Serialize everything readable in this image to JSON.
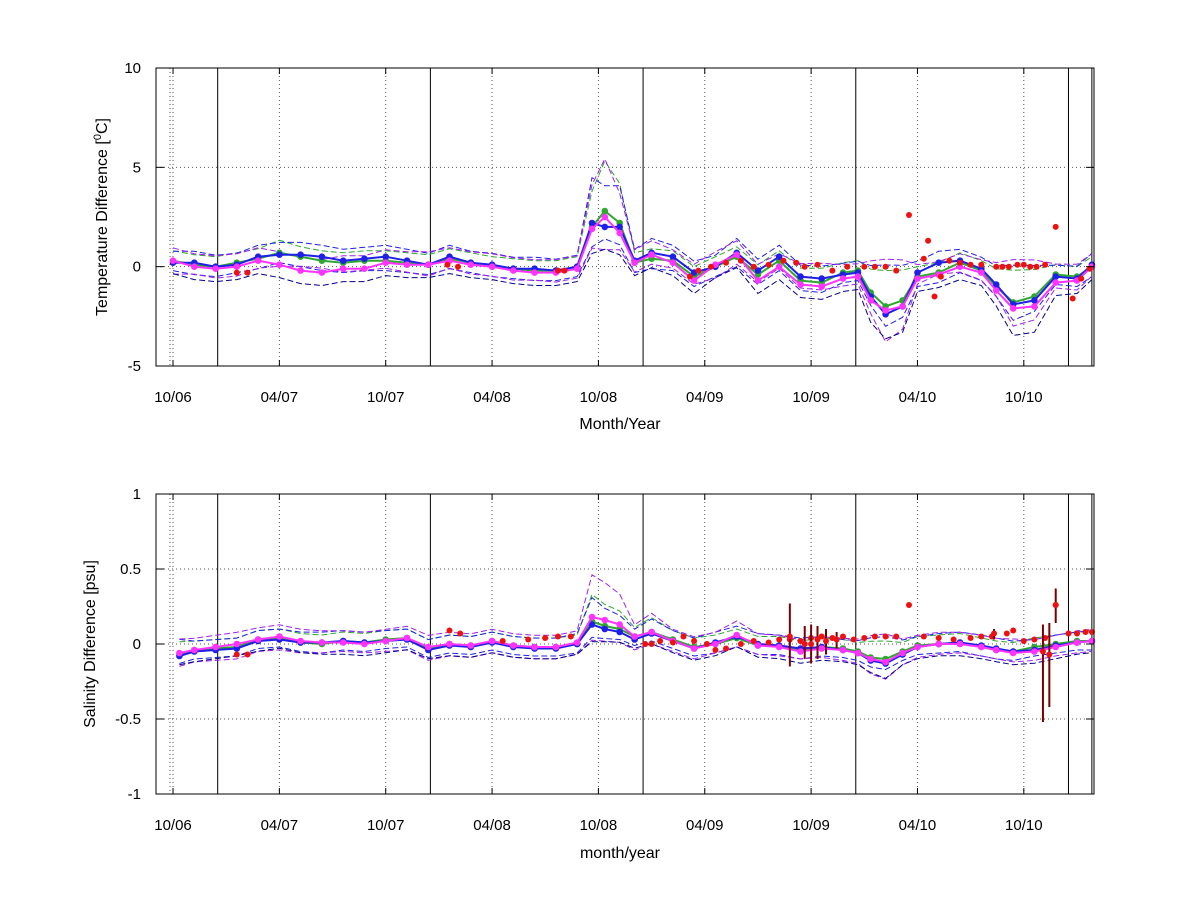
{
  "chart_data": [
    {
      "type": "scatter",
      "ylabel": "Temperature Difference [0C]",
      "ylabel_main": "Temperature Difference [",
      "ylabel_sup": "0",
      "ylabel_end": "C]",
      "xlabel": "Month/Year",
      "ylim": [
        -5,
        10
      ],
      "xlim": [
        2006.67,
        2011.08
      ],
      "yticks": [
        -5,
        0,
        5,
        10
      ],
      "ytick_labels": [
        "-5",
        "0",
        "5",
        "10"
      ],
      "xticks": [
        2006.75,
        2007.25,
        2007.75,
        2008.25,
        2008.75,
        2009.25,
        2009.75,
        2010.25,
        2010.75
      ],
      "xtick_labels": [
        "10/06",
        "04/07",
        "10/07",
        "04/08",
        "10/08",
        "04/09",
        "10/09",
        "04/10",
        "10/10"
      ],
      "grid": true,
      "vertical_lines_x": [
        2006.96,
        2007.96,
        2008.96,
        2009.96,
        2010.96,
        2011.07
      ],
      "colors": {
        "green": "#2ea82e",
        "blue": "#1f1fe8",
        "magenta": "#ff33ff",
        "red": "#ee1111",
        "purple": "#a020f0",
        "navy": "#00008b",
        "errorbar": "#7a0000"
      },
      "series": [
        {
          "color": "#2ea82e",
          "x": [
            2006.75,
            2006.85,
            2006.95,
            2007.05,
            2007.15,
            2007.25,
            2007.35,
            2007.45,
            2007.55,
            2007.65,
            2007.75,
            2007.85,
            2007.95,
            2008.05,
            2008.15,
            2008.25,
            2008.35,
            2008.45,
            2008.55,
            2008.65,
            2008.72,
            2008.78,
            2008.85,
            2008.92,
            2009.0,
            2009.1,
            2009.2,
            2009.3,
            2009.4,
            2009.5,
            2009.6,
            2009.7,
            2009.8,
            2009.9,
            2009.97,
            2010.03,
            2010.1,
            2010.18,
            2010.25,
            2010.35,
            2010.45,
            2010.55,
            2010.62,
            2010.7,
            2010.8,
            2010.9,
            2011.0,
            2011.07
          ],
          "y": [
            0.3,
            0.1,
            0.0,
            0.2,
            0.4,
            0.7,
            0.5,
            0.3,
            0.2,
            0.3,
            0.3,
            0.2,
            0.1,
            0.4,
            0.2,
            0.0,
            -0.1,
            -0.2,
            -0.2,
            0.0,
            2.0,
            2.8,
            2.2,
            0.2,
            0.4,
            0.3,
            -0.5,
            0.0,
            0.5,
            -0.4,
            0.3,
            -0.7,
            -0.8,
            -0.3,
            -0.2,
            -1.3,
            -2.0,
            -1.7,
            -0.5,
            -0.3,
            0.2,
            -0.2,
            -1.0,
            -1.8,
            -1.5,
            -0.4,
            -0.5,
            0.0
          ]
        },
        {
          "color": "#1f1fe8",
          "x": [
            2006.75,
            2006.85,
            2006.95,
            2007.05,
            2007.15,
            2007.25,
            2007.35,
            2007.45,
            2007.55,
            2007.65,
            2007.75,
            2007.85,
            2007.95,
            2008.05,
            2008.15,
            2008.25,
            2008.35,
            2008.45,
            2008.55,
            2008.65,
            2008.72,
            2008.78,
            2008.85,
            2008.92,
            2009.0,
            2009.1,
            2009.2,
            2009.3,
            2009.4,
            2009.5,
            2009.6,
            2009.7,
            2009.8,
            2009.9,
            2009.97,
            2010.03,
            2010.1,
            2010.18,
            2010.25,
            2010.35,
            2010.45,
            2010.55,
            2010.62,
            2010.7,
            2010.8,
            2010.9,
            2011.0,
            2011.07
          ],
          "y": [
            0.2,
            0.2,
            0.0,
            0.1,
            0.5,
            0.6,
            0.6,
            0.5,
            0.3,
            0.4,
            0.5,
            0.3,
            0.1,
            0.5,
            0.2,
            0.1,
            -0.1,
            -0.1,
            -0.2,
            0.0,
            2.2,
            2.0,
            2.0,
            0.3,
            0.7,
            0.5,
            -0.3,
            0.0,
            0.7,
            -0.2,
            0.5,
            -0.5,
            -0.6,
            -0.4,
            -0.3,
            -1.5,
            -2.4,
            -2.0,
            -0.3,
            0.2,
            0.3,
            -0.1,
            -0.9,
            -1.9,
            -1.7,
            -0.5,
            -0.6,
            0.1
          ]
        },
        {
          "color": "#ff33ff",
          "x": [
            2006.75,
            2006.85,
            2006.95,
            2007.05,
            2007.15,
            2007.25,
            2007.35,
            2007.45,
            2007.55,
            2007.65,
            2007.75,
            2007.85,
            2007.95,
            2008.05,
            2008.15,
            2008.25,
            2008.35,
            2008.45,
            2008.55,
            2008.65,
            2008.72,
            2008.78,
            2008.85,
            2008.92,
            2009.0,
            2009.1,
            2009.2,
            2009.3,
            2009.4,
            2009.5,
            2009.6,
            2009.7,
            2009.8,
            2009.9,
            2009.97,
            2010.03,
            2010.1,
            2010.18,
            2010.25,
            2010.35,
            2010.45,
            2010.55,
            2010.62,
            2010.7,
            2010.8,
            2010.9,
            2011.0,
            2011.07
          ],
          "y": [
            0.3,
            0.0,
            -0.1,
            0.0,
            0.3,
            0.1,
            -0.2,
            -0.3,
            -0.1,
            -0.1,
            0.2,
            0.1,
            0.1,
            0.3,
            0.1,
            0.0,
            -0.2,
            -0.3,
            -0.3,
            -0.1,
            1.9,
            2.5,
            1.7,
            0.2,
            0.6,
            0.2,
            -0.7,
            0.1,
            0.6,
            -0.7,
            0.0,
            -0.9,
            -1.0,
            -0.6,
            -0.5,
            -1.7,
            -2.2,
            -2.0,
            -0.6,
            -0.4,
            0.0,
            -0.3,
            -1.2,
            -2.1,
            -2.0,
            -0.8,
            -0.7,
            0.0
          ]
        },
        {
          "color": "#ee1111",
          "x": [
            2007.05,
            2007.1,
            2008.04,
            2008.09,
            2008.56,
            2008.59,
            2009.18,
            2009.22,
            2009.28,
            2009.35,
            2009.42,
            2009.48,
            2009.55,
            2009.62,
            2009.68,
            2009.72,
            2009.78,
            2009.85,
            2009.92,
            2010.0,
            2010.05,
            2010.1,
            2010.15,
            2010.21,
            2010.28,
            2010.3,
            2010.33,
            2010.36,
            2010.4,
            2010.45,
            2010.5,
            2010.55,
            2010.62,
            2010.65,
            2010.68,
            2010.72,
            2010.75,
            2010.78,
            2010.81,
            2010.85,
            2010.9,
            2010.98,
            2011.02,
            2011.06
          ],
          "y": [
            -0.3,
            -0.3,
            0.1,
            0.0,
            -0.2,
            -0.2,
            -0.5,
            -0.2,
            0.0,
            0.2,
            0.3,
            0.0,
            0.1,
            0.3,
            0.2,
            0.0,
            0.1,
            -0.2,
            0.0,
            0.0,
            0.0,
            0.0,
            -0.2,
            2.6,
            0.4,
            1.3,
            -1.5,
            -0.5,
            0.3,
            0.2,
            0.1,
            0.1,
            0.0,
            0.0,
            0.0,
            0.1,
            0.1,
            0.0,
            0.0,
            0.1,
            2.0,
            -1.6,
            -0.6,
            -0.1
          ]
        }
      ]
    },
    {
      "type": "scatter",
      "ylabel": "Salinity Difference [psu]",
      "xlabel": "month/year",
      "ylim": [
        -1,
        1
      ],
      "xlim": [
        2006.67,
        2011.08
      ],
      "yticks": [
        -1,
        -0.5,
        0,
        0.5,
        1
      ],
      "ytick_labels": [
        "-1",
        "-0.5",
        "0",
        "0.5",
        "1"
      ],
      "xticks": [
        2006.75,
        2007.25,
        2007.75,
        2008.25,
        2008.75,
        2009.25,
        2009.75,
        2010.25,
        2010.75
      ],
      "xtick_labels": [
        "10/06",
        "04/07",
        "10/07",
        "04/08",
        "10/08",
        "04/09",
        "10/09",
        "04/10",
        "10/10"
      ],
      "grid": true,
      "vertical_lines_x": [
        2006.96,
        2007.96,
        2008.96,
        2009.96,
        2010.96,
        2011.07
      ],
      "colors": {
        "green": "#2ea82e",
        "blue": "#1f1fe8",
        "magenta": "#ff33ff",
        "red": "#ee1111",
        "purple": "#a020f0",
        "navy": "#00008b",
        "errorbar": "#7a0000"
      },
      "series": [
        {
          "color": "#2ea82e",
          "x": [
            2006.78,
            2006.85,
            2006.95,
            2007.05,
            2007.15,
            2007.25,
            2007.35,
            2007.45,
            2007.55,
            2007.65,
            2007.75,
            2007.85,
            2007.95,
            2008.05,
            2008.15,
            2008.25,
            2008.35,
            2008.45,
            2008.55,
            2008.65,
            2008.72,
            2008.78,
            2008.85,
            2008.92,
            2009.0,
            2009.1,
            2009.2,
            2009.3,
            2009.4,
            2009.5,
            2009.6,
            2009.7,
            2009.8,
            2009.9,
            2009.97,
            2010.03,
            2010.1,
            2010.18,
            2010.25,
            2010.35,
            2010.45,
            2010.55,
            2010.62,
            2010.7,
            2010.8,
            2010.9,
            2011.0,
            2011.07
          ],
          "y": [
            -0.07,
            -0.04,
            -0.03,
            -0.02,
            0.03,
            0.04,
            0.01,
            0.0,
            0.02,
            0.01,
            0.03,
            0.04,
            -0.03,
            0.0,
            -0.01,
            0.02,
            -0.01,
            -0.02,
            -0.02,
            0.0,
            0.15,
            0.12,
            0.1,
            0.05,
            0.08,
            0.03,
            -0.02,
            0.0,
            0.04,
            -0.01,
            -0.01,
            -0.04,
            -0.02,
            -0.03,
            -0.05,
            -0.09,
            -0.1,
            -0.05,
            -0.01,
            0.0,
            0.01,
            -0.02,
            -0.04,
            -0.05,
            -0.02,
            0.0,
            0.02,
            0.02
          ]
        },
        {
          "color": "#1f1fe8",
          "x": [
            2006.78,
            2006.85,
            2006.95,
            2007.05,
            2007.15,
            2007.25,
            2007.35,
            2007.45,
            2007.55,
            2007.65,
            2007.75,
            2007.85,
            2007.95,
            2008.05,
            2008.15,
            2008.25,
            2008.35,
            2008.45,
            2008.55,
            2008.65,
            2008.72,
            2008.78,
            2008.85,
            2008.92,
            2009.0,
            2009.1,
            2009.2,
            2009.3,
            2009.4,
            2009.5,
            2009.6,
            2009.7,
            2009.8,
            2009.9,
            2009.97,
            2010.03,
            2010.1,
            2010.18,
            2010.25,
            2010.35,
            2010.45,
            2010.55,
            2010.62,
            2010.7,
            2010.8,
            2010.9,
            2011.0,
            2011.07
          ],
          "y": [
            -0.08,
            -0.05,
            -0.04,
            -0.03,
            0.02,
            0.03,
            0.01,
            0.01,
            0.02,
            0.01,
            0.02,
            0.03,
            -0.04,
            -0.01,
            -0.02,
            0.01,
            -0.02,
            -0.03,
            -0.03,
            0.0,
            0.13,
            0.1,
            0.08,
            0.03,
            0.07,
            0.02,
            -0.03,
            0.01,
            0.05,
            0.0,
            -0.01,
            -0.03,
            -0.02,
            -0.04,
            -0.06,
            -0.11,
            -0.13,
            -0.07,
            -0.02,
            0.0,
            0.01,
            -0.01,
            -0.03,
            -0.05,
            -0.04,
            -0.01,
            0.01,
            0.02
          ]
        },
        {
          "color": "#ff33ff",
          "x": [
            2006.78,
            2006.85,
            2006.95,
            2007.05,
            2007.15,
            2007.25,
            2007.35,
            2007.45,
            2007.55,
            2007.65,
            2007.75,
            2007.85,
            2007.95,
            2008.05,
            2008.15,
            2008.25,
            2008.35,
            2008.45,
            2008.55,
            2008.65,
            2008.72,
            2008.78,
            2008.85,
            2008.92,
            2009.0,
            2009.1,
            2009.2,
            2009.3,
            2009.4,
            2009.5,
            2009.6,
            2009.7,
            2009.8,
            2009.9,
            2009.97,
            2010.03,
            2010.1,
            2010.18,
            2010.25,
            2010.35,
            2010.45,
            2010.55,
            2010.62,
            2010.7,
            2010.8,
            2010.9,
            2011.0,
            2011.07
          ],
          "y": [
            -0.06,
            -0.04,
            -0.02,
            0.0,
            0.03,
            0.05,
            0.02,
            0.01,
            0.01,
            0.0,
            0.02,
            0.04,
            -0.02,
            0.0,
            -0.01,
            0.02,
            -0.01,
            -0.02,
            -0.02,
            0.01,
            0.18,
            0.16,
            0.13,
            0.05,
            0.08,
            0.02,
            -0.03,
            0.0,
            0.06,
            -0.01,
            -0.02,
            -0.05,
            -0.03,
            -0.04,
            -0.06,
            -0.1,
            -0.12,
            -0.06,
            -0.02,
            0.0,
            0.0,
            -0.02,
            -0.04,
            -0.06,
            -0.05,
            -0.02,
            0.01,
            0.02
          ]
        },
        {
          "color": "#ee1111",
          "x": [
            2007.05,
            2007.1,
            2008.05,
            2008.1,
            2008.3,
            2008.42,
            2008.5,
            2008.56,
            2008.62,
            2008.97,
            2009.0,
            2009.04,
            2009.1,
            2009.15,
            2009.2,
            2009.26,
            2009.3,
            2009.35,
            2009.42,
            2009.48,
            2009.55,
            2009.6,
            2009.65,
            2009.7,
            2009.75,
            2009.8,
            2009.85,
            2009.9,
            2009.95,
            2010.0,
            2010.05,
            2010.1,
            2010.15,
            2010.21,
            2010.28,
            2010.35,
            2010.42,
            2010.5,
            2010.55,
            2010.6,
            2010.67,
            2010.7,
            2010.75,
            2010.8,
            2010.85,
            2010.9,
            2010.96,
            2011.0,
            2011.04,
            2011.07
          ],
          "y": [
            -0.07,
            -0.07,
            0.09,
            0.07,
            0.02,
            0.03,
            0.04,
            0.05,
            0.05,
            0.0,
            0.0,
            0.02,
            0.01,
            0.05,
            0.02,
            0.0,
            -0.04,
            -0.03,
            0.0,
            0.02,
            0.01,
            0.03,
            0.03,
            0.02,
            0.04,
            0.05,
            0.04,
            0.05,
            0.03,
            0.04,
            0.05,
            0.05,
            0.05,
            0.26,
            0.05,
            0.04,
            0.03,
            0.04,
            0.05,
            0.05,
            0.07,
            0.09,
            0.02,
            0.03,
            0.04,
            0.26,
            0.07,
            0.07,
            0.08,
            0.08
          ]
        }
      ],
      "error_bars": [
        {
          "x": 2009.65,
          "y": 0.05,
          "low": -0.15,
          "high": 0.27
        },
        {
          "x": 2009.72,
          "y": 0.0,
          "low": -0.1,
          "high": 0.12
        },
        {
          "x": 2009.75,
          "y": 0.0,
          "low": -0.13,
          "high": 0.13
        },
        {
          "x": 2009.78,
          "y": 0.03,
          "low": -0.1,
          "high": 0.12
        },
        {
          "x": 2009.82,
          "y": 0.02,
          "low": -0.07,
          "high": 0.1
        },
        {
          "x": 2009.87,
          "y": 0.03,
          "low": -0.03,
          "high": 0.08
        },
        {
          "x": 2010.61,
          "y": 0.07,
          "low": 0.03,
          "high": 0.1
        },
        {
          "x": 2010.84,
          "y": -0.05,
          "low": -0.52,
          "high": 0.13
        },
        {
          "x": 2010.87,
          "y": -0.07,
          "low": -0.42,
          "high": 0.14
        },
        {
          "x": 2010.9,
          "y": 0.26,
          "low": 0.14,
          "high": 0.37
        }
      ]
    }
  ]
}
